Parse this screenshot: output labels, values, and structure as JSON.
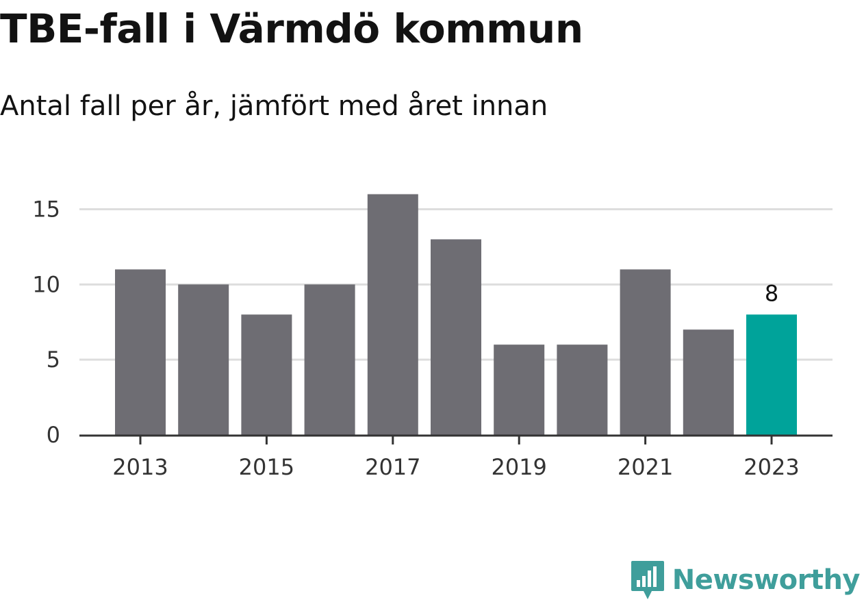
{
  "title": "TBE-fall i Värmdö kommun",
  "subtitle": "Antal fall per år, jämfört med året innan",
  "brand": {
    "name": "Newsworthy",
    "icon": "newsworthy-logo-icon",
    "color": "#3f9e9b"
  },
  "chart_data": {
    "type": "bar",
    "title": "TBE-fall i Värmdö kommun",
    "subtitle": "Antal fall per år, jämfört med året innan",
    "xlabel": "",
    "ylabel": "",
    "categories": [
      "2013",
      "2014",
      "2015",
      "2016",
      "2017",
      "2018",
      "2019",
      "2020",
      "2021",
      "2022",
      "2023"
    ],
    "values": [
      11,
      10,
      8,
      10,
      16,
      13,
      6,
      6,
      11,
      7,
      8
    ],
    "x_tick_labels": [
      "2013",
      "2015",
      "2017",
      "2019",
      "2021",
      "2023"
    ],
    "y_ticks": [
      0,
      5,
      10,
      15
    ],
    "ylim": [
      0,
      16
    ],
    "grid": true,
    "highlight": {
      "category": "2023",
      "label": "8"
    },
    "colors": {
      "bar": "#6e6d73",
      "highlight": "#00a39a",
      "grid": "#dddddd",
      "axis": "#333333",
      "tick_text": "#333333"
    }
  }
}
